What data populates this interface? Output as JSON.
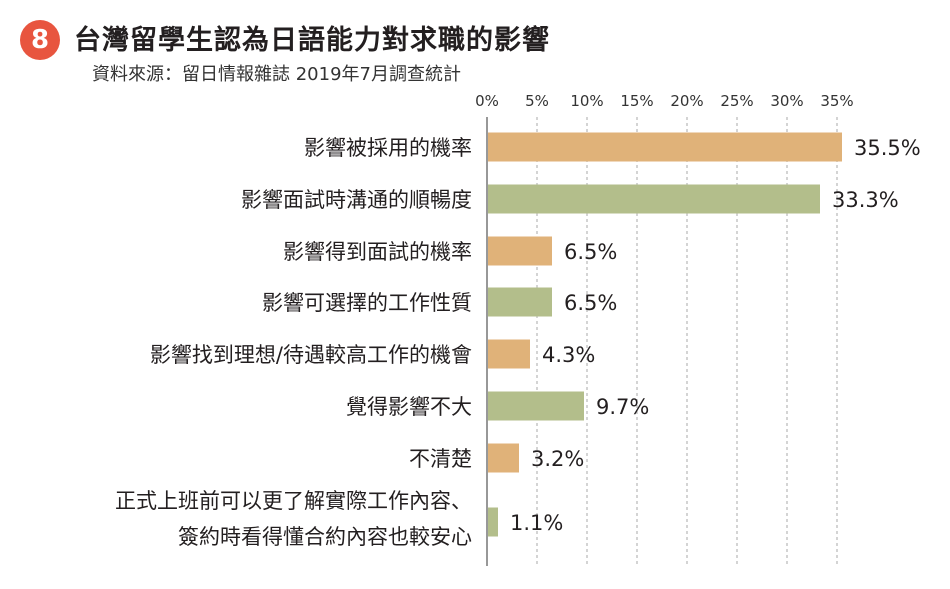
{
  "badge": "8",
  "colors": {
    "badge": "#e8553f",
    "bar_orange": "#e0b279",
    "bar_green": "#b3be8b",
    "grid": "#b8b8b8",
    "axis": "#777777"
  },
  "chart_data": {
    "type": "bar",
    "orientation": "horizontal",
    "title": "台灣留學生認為日語能力對求職的影響",
    "subtitle": "資料來源：留日情報雜誌 2019年7月調查統計",
    "xlim": [
      0,
      35.5
    ],
    "ticks": [
      "0%",
      "5%",
      "10%",
      "15%",
      "20%",
      "25%",
      "30%",
      "35%"
    ],
    "tick_values": [
      0,
      5,
      10,
      15,
      20,
      25,
      30,
      35
    ],
    "grid": true,
    "categories": [
      [
        "影響被採用的機率"
      ],
      [
        "影響面試時溝通的順暢度"
      ],
      [
        "影響得到面試的機率"
      ],
      [
        "影響可選擇的工作性質"
      ],
      [
        "影響找到理想/待遇較高工作的機會"
      ],
      [
        "覺得影響不大"
      ],
      [
        "不清楚"
      ],
      [
        "正式上班前可以更了解實際工作內容、",
        "簽約時看得懂合約內容也較安心"
      ]
    ],
    "values": [
      35.5,
      33.3,
      6.5,
      6.5,
      4.3,
      9.7,
      3.2,
      1.1
    ],
    "value_labels": [
      "35.5%",
      "33.3%",
      "6.5%",
      "6.5%",
      "4.3%",
      "9.7%",
      "3.2%",
      "1.1%"
    ],
    "bar_colors": [
      "orange",
      "green",
      "orange",
      "green",
      "orange",
      "green",
      "orange",
      "green"
    ]
  }
}
